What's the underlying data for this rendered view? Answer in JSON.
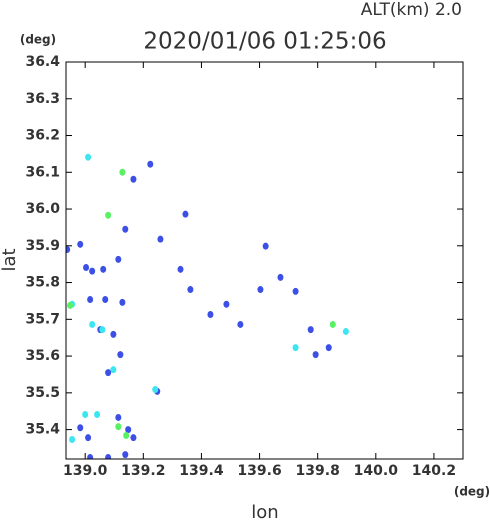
{
  "chart_data": {
    "type": "scatter",
    "title": "2020/01/06 01:25:06",
    "subtitle": "ALT(km) 2.0",
    "x_label": "lon",
    "y_label": "lat",
    "x_unit": "(deg)",
    "y_unit": "(deg)",
    "xlim": [
      138.934,
      140.3
    ],
    "ylim": [
      35.32,
      36.4
    ],
    "xticks": [
      {
        "value": 139.0,
        "label": "139.0"
      },
      139.2,
      139.4,
      139.6,
      139.8,
      {
        "value": 140.0,
        "label": "140.0"
      },
      140.2
    ],
    "yticks": [
      35.4,
      35.5,
      35.6,
      35.7,
      35.8,
      35.9,
      {
        "value": 36.0,
        "label": "36.0"
      },
      36.1,
      36.2,
      36.3,
      36.4
    ],
    "series": [
      {
        "color": "#3c50e6",
        "x": [
          138.938,
          138.983,
          139.003,
          139.024,
          139.062,
          139.069,
          139.017,
          139.052,
          139.097,
          139.138,
          139.166,
          139.224,
          139.259,
          139.345,
          139.328,
          139.362,
          139.431,
          139.486,
          139.534,
          139.603,
          139.621,
          139.672,
          139.724,
          139.776,
          139.793,
          139.838,
          139.128,
          139.114,
          139.079,
          139.121,
          139.248,
          139.114,
          139.148,
          139.166,
          139.017,
          139.079,
          139.138,
          139.01,
          138.983
        ],
        "values": [
          35.89,
          35.904,
          35.841,
          35.831,
          35.836,
          35.754,
          35.754,
          35.672,
          35.659,
          35.945,
          36.081,
          36.122,
          35.918,
          35.986,
          35.836,
          35.781,
          35.713,
          35.741,
          35.686,
          35.781,
          35.899,
          35.814,
          35.776,
          35.672,
          35.604,
          35.623,
          35.746,
          35.863,
          35.555,
          35.604,
          35.504,
          35.433,
          35.4,
          35.378,
          35.324,
          35.324,
          35.332,
          35.378,
          35.405
        ]
      },
      {
        "color": "#3ce6f0",
        "x": [
          139.01,
          138.955,
          139.024,
          139.059,
          138.955,
          139.0,
          139.041,
          139.097,
          139.241,
          139.724,
          139.897
        ],
        "values": [
          36.141,
          35.741,
          35.686,
          35.672,
          35.373,
          35.441,
          35.441,
          35.563,
          35.509,
          35.623,
          35.667
        ]
      },
      {
        "color": "#5af064",
        "x": [
          139.128,
          139.079,
          138.948,
          139.114,
          139.141,
          139.852
        ],
        "values": [
          36.1,
          35.983,
          35.738,
          35.408,
          35.384,
          35.686
        ]
      }
    ]
  }
}
